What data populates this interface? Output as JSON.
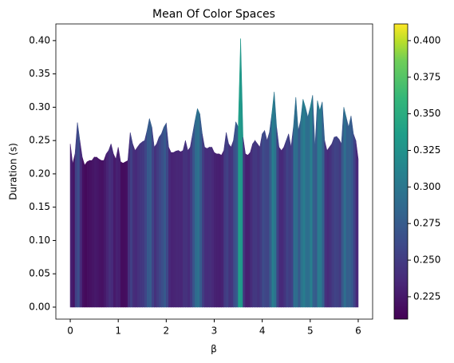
{
  "chart_data": {
    "type": "colored_area",
    "title": "Mean Of Color Spaces",
    "xlabel": "β",
    "ylabel": "Duration (s)",
    "x": [
      0,
      0.05,
      0.1,
      0.15,
      0.2,
      0.25,
      0.3,
      0.35,
      0.4,
      0.45,
      0.5,
      0.55,
      0.6,
      0.65,
      0.7,
      0.75,
      0.8,
      0.85,
      0.9,
      0.95,
      1,
      1.05,
      1.1,
      1.15,
      1.2,
      1.25,
      1.3,
      1.35,
      1.4,
      1.45,
      1.5,
      1.55,
      1.6,
      1.65,
      1.7,
      1.75,
      1.8,
      1.85,
      1.9,
      1.95,
      2,
      2.05,
      2.1,
      2.15,
      2.2,
      2.25,
      2.3,
      2.35,
      2.4,
      2.45,
      2.5,
      2.55,
      2.6,
      2.65,
      2.7,
      2.75,
      2.8,
      2.85,
      2.9,
      2.95,
      3,
      3.05,
      3.1,
      3.15,
      3.2,
      3.25,
      3.3,
      3.35,
      3.4,
      3.45,
      3.5,
      3.55,
      3.6,
      3.65,
      3.7,
      3.75,
      3.8,
      3.85,
      3.9,
      3.95,
      4,
      4.05,
      4.1,
      4.15,
      4.2,
      4.25,
      4.3,
      4.35,
      4.4,
      4.45,
      4.5,
      4.55,
      4.6,
      4.65,
      4.7,
      4.75,
      4.8,
      4.85,
      4.9,
      4.95,
      5,
      5.05,
      5.1,
      5.15,
      5.2,
      5.25,
      5.3,
      5.35,
      5.4,
      5.45,
      5.5,
      5.55,
      5.6,
      5.65,
      5.7,
      5.75,
      5.8,
      5.85,
      5.9,
      5.95,
      6
    ],
    "values": [
      0.245,
      0.215,
      0.23,
      0.277,
      0.25,
      0.225,
      0.213,
      0.218,
      0.22,
      0.22,
      0.225,
      0.225,
      0.222,
      0.22,
      0.22,
      0.23,
      0.235,
      0.245,
      0.23,
      0.222,
      0.24,
      0.218,
      0.216,
      0.218,
      0.22,
      0.262,
      0.245,
      0.235,
      0.24,
      0.245,
      0.248,
      0.25,
      0.265,
      0.283,
      0.27,
      0.24,
      0.245,
      0.255,
      0.26,
      0.27,
      0.276,
      0.24,
      0.232,
      0.232,
      0.234,
      0.235,
      0.233,
      0.235,
      0.25,
      0.235,
      0.24,
      0.26,
      0.28,
      0.298,
      0.29,
      0.26,
      0.24,
      0.238,
      0.24,
      0.24,
      0.232,
      0.23,
      0.23,
      0.228,
      0.235,
      0.262,
      0.245,
      0.24,
      0.25,
      0.278,
      0.27,
      0.403,
      0.255,
      0.23,
      0.228,
      0.232,
      0.245,
      0.25,
      0.245,
      0.24,
      0.26,
      0.265,
      0.25,
      0.262,
      0.29,
      0.323,
      0.27,
      0.24,
      0.235,
      0.24,
      0.25,
      0.26,
      0.24,
      0.27,
      0.315,
      0.265,
      0.28,
      0.312,
      0.3,
      0.285,
      0.3,
      0.318,
      0.24,
      0.31,
      0.295,
      0.308,
      0.25,
      0.235,
      0.24,
      0.245,
      0.255,
      0.256,
      0.252,
      0.245,
      0.3,
      0.285,
      0.27,
      0.287,
      0.26,
      0.25,
      0.222
    ],
    "colormap": "viridis",
    "xlim": [
      -0.3,
      6.3
    ],
    "ylim": [
      -0.018,
      0.425
    ],
    "xticks": [
      0,
      1,
      2,
      3,
      4,
      5,
      6
    ],
    "yticks": [
      {
        "value": 0,
        "label": "0.00"
      },
      {
        "value": 0.05,
        "label": "0.05"
      },
      {
        "value": 0.1,
        "label": "0.10"
      },
      {
        "value": 0.15,
        "label": "0.15"
      },
      {
        "value": 0.2,
        "label": "0.20"
      },
      {
        "value": 0.25,
        "label": "0.25"
      },
      {
        "value": 0.3,
        "label": "0.30"
      },
      {
        "value": 0.35,
        "label": "0.35"
      },
      {
        "value": 0.4,
        "label": "0.40"
      }
    ],
    "clim": [
      0.2097,
      0.4114
    ],
    "cticks": [
      0.225,
      {
        "value": 0.25,
        "label": "0.250"
      },
      0.275,
      {
        "value": 0.3,
        "label": "0.300"
      },
      0.325,
      {
        "value": 0.35,
        "label": "0.350"
      },
      0.375,
      {
        "value": 0.4,
        "label": "0.400"
      }
    ]
  }
}
